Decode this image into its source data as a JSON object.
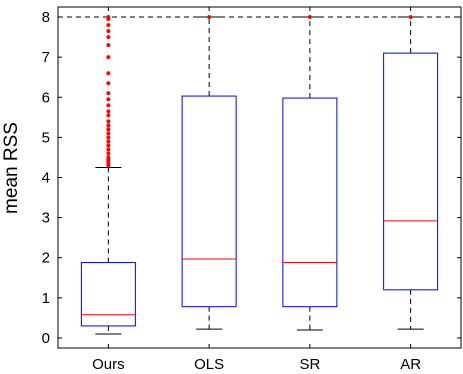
{
  "chart_data": {
    "type": "box",
    "title": "",
    "xlabel": "",
    "ylabel": "mean RSS",
    "ylim": [
      -0.25,
      8.25
    ],
    "yticks": [
      0,
      1,
      2,
      3,
      4,
      5,
      6,
      7,
      8
    ],
    "categories": [
      "Ours",
      "OLS",
      "SR",
      "AR"
    ],
    "reference_line": 8,
    "colors": {
      "box": "#0000ff",
      "median": "#ff0000",
      "whisker": "#000000",
      "outlier": "#ff0000",
      "axes": "#000000"
    },
    "boxes": [
      {
        "name": "Ours",
        "whisker_low": 0.1,
        "q1": 0.3,
        "median": 0.58,
        "q3": 1.88,
        "whisker_high": 4.25,
        "outliers": [
          4.3,
          4.35,
          4.4,
          4.45,
          4.5,
          4.6,
          4.7,
          4.8,
          4.9,
          5.0,
          5.1,
          5.2,
          5.3,
          5.4,
          5.55,
          5.65,
          5.8,
          5.95,
          6.1,
          6.35,
          6.6,
          7.0,
          7.3,
          7.5,
          7.65,
          7.8,
          7.95,
          8.0
        ]
      },
      {
        "name": "OLS",
        "whisker_low": 0.22,
        "q1": 0.78,
        "median": 1.97,
        "q3": 6.03,
        "whisker_high": 8.0,
        "outliers": [
          8.0
        ]
      },
      {
        "name": "SR",
        "whisker_low": 0.2,
        "q1": 0.78,
        "median": 1.88,
        "q3": 5.98,
        "whisker_high": 8.0,
        "outliers": [
          8.0
        ]
      },
      {
        "name": "AR",
        "whisker_low": 0.22,
        "q1": 1.2,
        "median": 2.92,
        "q3": 7.1,
        "whisker_high": 8.0,
        "outliers": [
          8.0
        ]
      }
    ]
  }
}
